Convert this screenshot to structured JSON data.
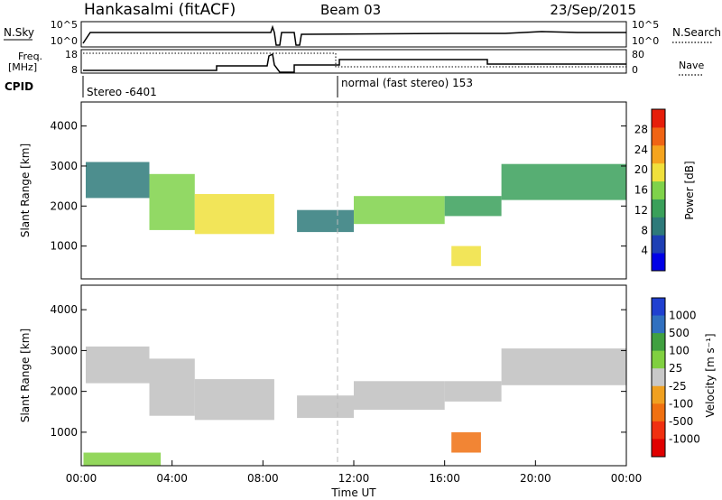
{
  "header": {
    "station": "Hankasalmi (fitACF)",
    "beam": "Beam 03",
    "date": "23/Sep/2015"
  },
  "top_panels": {
    "nsky_label": "N.Sky",
    "nsky_ticks": [
      "10^5",
      "10^0"
    ],
    "nsearch_label": "N.Search",
    "nsearch_ticks": [
      "10^5",
      "10^0"
    ],
    "freq_label_1": "Freq.",
    "freq_label_2": "[MHz]",
    "freq_ticks": [
      "18",
      "8"
    ],
    "nave_label": "Nave",
    "nave_ticks": [
      "80",
      "0"
    ],
    "cpid_label": "CPID",
    "cpid_segments": [
      "Stereo -6401",
      "normal (fast stereo) 153"
    ]
  },
  "colors": {
    "power_scale": [
      "#0000e6",
      "#1e3fb4",
      "#2e7a7a",
      "#3aa05a",
      "#7fd24a",
      "#f0e03c",
      "#f5a41e",
      "#f06414",
      "#e61e0a"
    ],
    "velocity_scale": [
      "#2040d0",
      "#3070c0",
      "#40a040",
      "#80d040",
      "#c8c8c8",
      "#f0a020",
      "#f07010",
      "#f03010",
      "#e00000"
    ],
    "ground_scatter": "#c0c0c0"
  },
  "chart_data": [
    {
      "type": "heatmap",
      "panel": "power",
      "ylabel": "Slant Range [km]",
      "yticks": [
        1000,
        2000,
        3000,
        4000
      ],
      "ylim": [
        180,
        4600
      ],
      "xlim_hours": [
        0,
        24
      ],
      "colorbar_label": "Power [dB]",
      "colorbar_ticks": [
        28,
        24,
        20,
        16,
        12,
        8,
        4
      ],
      "colorbar_range": [
        0,
        32
      ],
      "echo_bands": [
        {
          "t": [
            0.2,
            3.0
          ],
          "range": [
            2200,
            3100
          ],
          "power": 8
        },
        {
          "t": [
            3.0,
            5.0
          ],
          "range": [
            1400,
            2800
          ],
          "power": 16
        },
        {
          "t": [
            5.0,
            8.5
          ],
          "range": [
            1300,
            2300
          ],
          "power": 18
        },
        {
          "t": [
            9.5,
            12.0
          ],
          "range": [
            1350,
            1900
          ],
          "power": 10
        },
        {
          "t": [
            12.0,
            16.0
          ],
          "range": [
            1550,
            2250
          ],
          "power": 16
        },
        {
          "t": [
            16.0,
            18.5
          ],
          "range": [
            1750,
            2250
          ],
          "power": 14
        },
        {
          "t": [
            18.5,
            24.0
          ],
          "range": [
            2150,
            3050
          ],
          "power": 14
        },
        {
          "t": [
            16.3,
            17.6
          ],
          "range": [
            500,
            1000
          ],
          "power": 20
        }
      ]
    },
    {
      "type": "heatmap",
      "panel": "velocity",
      "ylabel": "Slant Range [km]",
      "yticks": [
        1000,
        2000,
        3000,
        4000
      ],
      "ylim": [
        180,
        4600
      ],
      "xlim_hours": [
        0,
        24
      ],
      "xticks": [
        "00:00",
        "04:00",
        "08:00",
        "12:00",
        "16:00",
        "20:00",
        "00:00"
      ],
      "xlabel": "Time UT",
      "colorbar_label": "Velocity [m s⁻¹]",
      "colorbar_ticks": [
        "1000",
        "500",
        "100",
        "25",
        "-25",
        "-100",
        "-500",
        "-1000"
      ],
      "echo_bands": [
        {
          "t": [
            0.2,
            3.0
          ],
          "range": [
            2200,
            3100
          ],
          "velocity": 0
        },
        {
          "t": [
            3.0,
            5.0
          ],
          "range": [
            1400,
            2800
          ],
          "velocity": 0
        },
        {
          "t": [
            5.0,
            8.5
          ],
          "range": [
            1300,
            2300
          ],
          "velocity": 0
        },
        {
          "t": [
            9.5,
            12.0
          ],
          "range": [
            1350,
            1900
          ],
          "velocity": 0
        },
        {
          "t": [
            12.0,
            16.0
          ],
          "range": [
            1550,
            2250
          ],
          "velocity": 0
        },
        {
          "t": [
            16.0,
            18.5
          ],
          "range": [
            1750,
            2250
          ],
          "velocity": 0
        },
        {
          "t": [
            18.5,
            24.0
          ],
          "range": [
            2150,
            3050
          ],
          "velocity": 0
        },
        {
          "t": [
            16.3,
            17.6
          ],
          "range": [
            500,
            1000
          ],
          "velocity": -300
        },
        {
          "t": [
            0.1,
            3.5
          ],
          "range": [
            180,
            500
          ],
          "velocity": 60
        }
      ]
    }
  ]
}
